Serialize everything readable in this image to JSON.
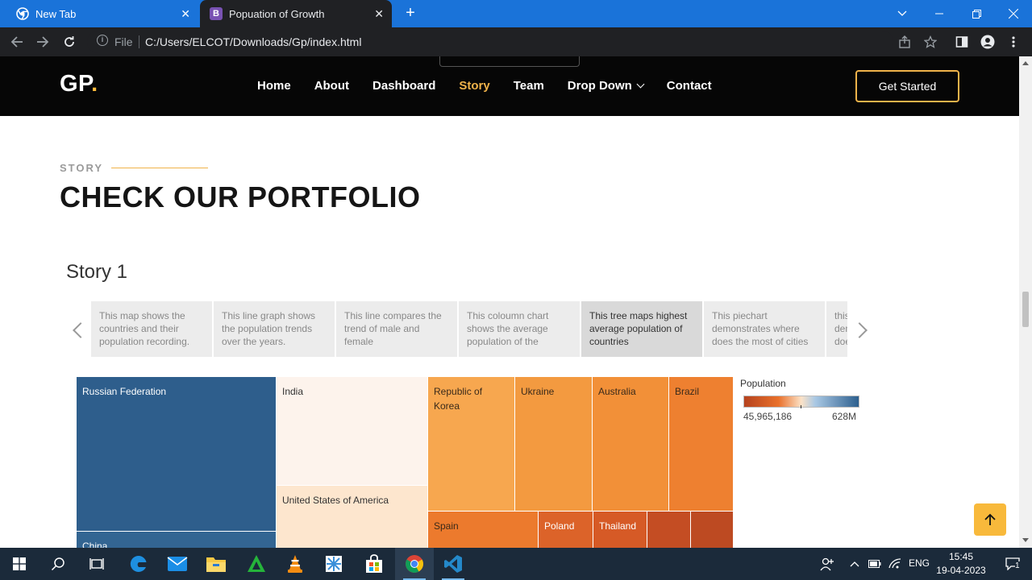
{
  "browser": {
    "tabs": [
      {
        "label": "New Tab"
      },
      {
        "label": "Popuation of Growth"
      }
    ],
    "address": {
      "scheme_label": "File",
      "url": "C:/Users/ELCOT/Downloads/Gp/index.html"
    }
  },
  "site": {
    "logo": "GP",
    "logo_dot": ".",
    "nav": [
      {
        "label": "Home"
      },
      {
        "label": "About"
      },
      {
        "label": "Dashboard"
      },
      {
        "label": "Story"
      },
      {
        "label": "Team"
      },
      {
        "label": "Drop Down"
      },
      {
        "label": "Contact"
      }
    ],
    "cta": "Get Started"
  },
  "section": {
    "kicker": "STORY",
    "title": "CHECK OUR PORTFOLIO"
  },
  "story": {
    "title": "Story 1",
    "points": [
      {
        "text": "This map shows the countries and their population recording."
      },
      {
        "text": "This line graph shows the population trends over the years."
      },
      {
        "text": "This line compares the trend of male and female"
      },
      {
        "text": "This coloumn chart shows the average population of the"
      },
      {
        "text": "This tree maps highest average population of countries"
      },
      {
        "text": "This piechart demonstrates where does the most of cities"
      },
      {
        "text": "this demo does"
      }
    ]
  },
  "chart_data": {
    "type": "treemap",
    "measure": "Population",
    "legend": {
      "title": "Population",
      "min_label": "45,965,186",
      "max_label": "628M"
    },
    "nodes": [
      {
        "label": "Russian Federation",
        "color": "#2e5e8c"
      },
      {
        "label": "India",
        "color": "#fdf3ec"
      },
      {
        "label": "Republic of Korea",
        "color": "#f7a74f"
      },
      {
        "label": "Ukraine",
        "color": "#f39a40"
      },
      {
        "label": "Australia",
        "color": "#f29038"
      },
      {
        "label": "Brazil",
        "color": "#ee8030"
      },
      {
        "label": "China",
        "color": "#336592"
      },
      {
        "label": "United States of America",
        "color": "#fde6ce"
      },
      {
        "label": "Spain",
        "color": "#ec7a2d"
      },
      {
        "label": "Poland",
        "color": "#dc6329"
      },
      {
        "label": "Thailand",
        "color": "#d65a26"
      },
      {
        "label": "",
        "color": "#c44d23"
      },
      {
        "label": "",
        "color": "#bd4a22"
      }
    ]
  },
  "taskbar": {
    "lang": "ENG",
    "time": "15:45",
    "date": "19-04-2023",
    "notifications": "1"
  }
}
